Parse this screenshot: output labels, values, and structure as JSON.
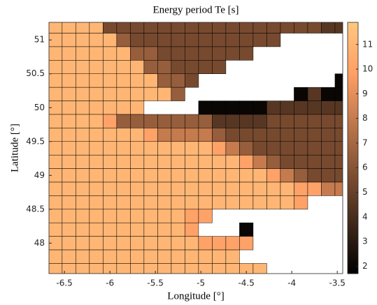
{
  "chart_data": {
    "type": "heatmap",
    "title": "Energy period Te [s]",
    "x_label": "Longitude [°]",
    "y_label": "Latitude [°]",
    "colormap": "copper",
    "x": [
      -6.6,
      -6.45,
      -6.3,
      -6.15,
      -6.0,
      -5.85,
      -5.7,
      -5.55,
      -5.4,
      -5.25,
      -5.1,
      -4.95,
      -4.8,
      -4.65,
      -4.5,
      -4.35,
      -4.2,
      -4.05,
      -3.9,
      -3.75,
      -3.6,
      -3.45
    ],
    "y": [
      51.2,
      51.0,
      50.8,
      50.6,
      50.4,
      50.2,
      50.0,
      49.8,
      49.6,
      49.4,
      49.2,
      49.0,
      48.8,
      48.6,
      48.4,
      48.2,
      48.0,
      47.8,
      47.6
    ],
    "z": [
      [
        11,
        11,
        11,
        11,
        5.5,
        5.5,
        5.5,
        5.5,
        5.5,
        5.5,
        5.5,
        5.5,
        5.5,
        5.5,
        5.5,
        5.5,
        5.5,
        5.5,
        5.5,
        5.5,
        4.5,
        4.5
      ],
      [
        11,
        11,
        11,
        11,
        11,
        6.5,
        5.5,
        5.5,
        5.5,
        5.5,
        5.5,
        5.5,
        5.5,
        5.5,
        5.5,
        5.5,
        5.5,
        null,
        null,
        null,
        null,
        null
      ],
      [
        11,
        11,
        11,
        11,
        11,
        11,
        6.5,
        6.5,
        5.5,
        5.5,
        5.5,
        5.5,
        5.5,
        5.5,
        5.5,
        null,
        null,
        null,
        null,
        null,
        null,
        null
      ],
      [
        11,
        11,
        11,
        11,
        11,
        11,
        11,
        6.5,
        6.5,
        5.5,
        5.5,
        5.5,
        5.5,
        null,
        null,
        null,
        null,
        null,
        null,
        null,
        null,
        null
      ],
      [
        11,
        11,
        11,
        11,
        11,
        11,
        11,
        11,
        6.5,
        6.5,
        5.5,
        null,
        null,
        null,
        null,
        null,
        null,
        null,
        null,
        null,
        null,
        2
      ],
      [
        11,
        11,
        11,
        11,
        11,
        11,
        11,
        11,
        11,
        6.5,
        null,
        null,
        null,
        null,
        null,
        null,
        null,
        null,
        2,
        4.5,
        2,
        2
      ],
      [
        11,
        11,
        11,
        11,
        11,
        11,
        11,
        null,
        null,
        null,
        null,
        2,
        2,
        2,
        2,
        2,
        4.5,
        4.5,
        4.5,
        4.5,
        4.5,
        4.5
      ],
      [
        11,
        11,
        11,
        11,
        10,
        6.5,
        6.5,
        6.5,
        6.5,
        6.5,
        6.5,
        6.5,
        4.5,
        4.5,
        4.5,
        4.5,
        5.5,
        5.5,
        5.5,
        5.5,
        5.5,
        5.5
      ],
      [
        11,
        11,
        11,
        11,
        11,
        11,
        11,
        10,
        8,
        8,
        8,
        8,
        6.5,
        5.5,
        5.5,
        5.5,
        5.5,
        5.5,
        5.5,
        5.5,
        5.5,
        5.5
      ],
      [
        11,
        11,
        11,
        11,
        11,
        11,
        11,
        11,
        11,
        11,
        11,
        11,
        10,
        8,
        6.5,
        5.5,
        5.5,
        5.5,
        5.5,
        5.5,
        5.5,
        5.5
      ],
      [
        11,
        11,
        11,
        11,
        11,
        11,
        11,
        11,
        11,
        11,
        11,
        11,
        11,
        11,
        10,
        8,
        6.5,
        5.5,
        5.5,
        5.5,
        5.5,
        5.5
      ],
      [
        11,
        11,
        11,
        11,
        11,
        11,
        11,
        11,
        11,
        11,
        11,
        11,
        11,
        11,
        11,
        11,
        10,
        8,
        6.5,
        5.5,
        5.5,
        5.5
      ],
      [
        11,
        11,
        11,
        11,
        11,
        11,
        11,
        11,
        11,
        11,
        11,
        11,
        11,
        11,
        11,
        11,
        11,
        11,
        10,
        10,
        8,
        8
      ],
      [
        11,
        11,
        11,
        11,
        11,
        11,
        11,
        11,
        11,
        11,
        11,
        11,
        11,
        11,
        11,
        11,
        11,
        11,
        10,
        null,
        null,
        null
      ],
      [
        11,
        11,
        11,
        11,
        11,
        11,
        11,
        11,
        11,
        11,
        10,
        10,
        null,
        null,
        null,
        null,
        null,
        null,
        null,
        null,
        null,
        null
      ],
      [
        11,
        11,
        11,
        11,
        11,
        11,
        11,
        11,
        11,
        11,
        10,
        null,
        null,
        null,
        2,
        null,
        null,
        null,
        null,
        null,
        null,
        null
      ],
      [
        11,
        11,
        11,
        11,
        11,
        11,
        11,
        11,
        11,
        11,
        11,
        10,
        10,
        10,
        10,
        null,
        null,
        null,
        null,
        null,
        null,
        null
      ],
      [
        11,
        11,
        11,
        11,
        11,
        11,
        11,
        11,
        11,
        11,
        11,
        11,
        11,
        11,
        null,
        null,
        null,
        null,
        null,
        null,
        null,
        null
      ],
      [
        11,
        11,
        11,
        11,
        11,
        11,
        11,
        11,
        11,
        11,
        11,
        11,
        11,
        11,
        11,
        11,
        null,
        null,
        null,
        null,
        null,
        null
      ]
    ],
    "xlim": [
      -6.67,
      -3.44
    ],
    "ylim": [
      47.55,
      51.26
    ],
    "xticks": [
      -6.5,
      -6,
      -5.5,
      -5,
      -4.5,
      -4,
      -3.5
    ],
    "yticks": [
      48,
      48.5,
      49,
      49.5,
      50,
      50.5,
      51
    ],
    "clim": [
      1.7,
      11.9
    ],
    "cticks": [
      2,
      3,
      4,
      5,
      6,
      7,
      8,
      9,
      10,
      11
    ]
  }
}
